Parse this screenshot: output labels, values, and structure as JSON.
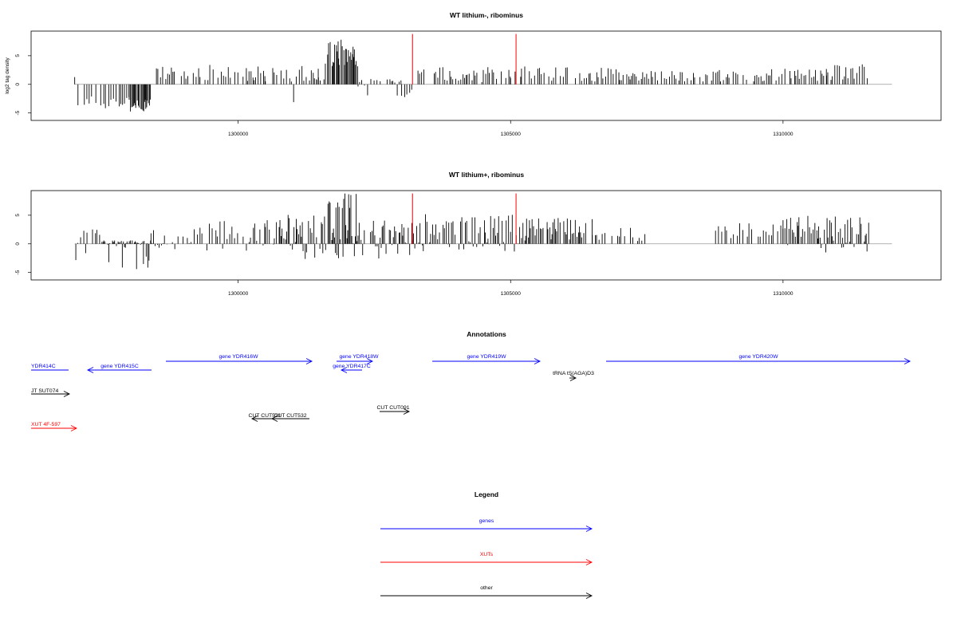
{
  "colors": {
    "genes": "#0000ff",
    "xuts": "#ff0000",
    "other": "#000000",
    "baseline": "#999999",
    "marker": "#ff0000"
  },
  "chart_data": [
    {
      "type": "bar",
      "title": "WT lithium-, ribominus",
      "ylabel": "log2 tag density",
      "xlim": [
        1296200,
        1312900
      ],
      "ylim": [
        -6.3,
        9.3
      ],
      "xticks": [
        1300000,
        1305000,
        1310000
      ],
      "xtick_labels": [
        "1300000",
        "1305000",
        "1310000"
      ],
      "yticks": [
        -5,
        0,
        5
      ],
      "ytick_labels": [
        "-5",
        "0",
        "5"
      ],
      "markers": [
        1303200,
        1305100
      ],
      "marker_height": 8.8,
      "baseline": [
        1297000,
        1312000
      ],
      "profile": [
        [
          1297000,
          1297050,
          -2.8,
          3.0
        ],
        [
          1297060,
          1298000,
          -4.2,
          -2.0
        ],
        [
          1298000,
          1298400,
          -4.8,
          -2.4
        ],
        [
          1298500,
          1299300,
          0.4,
          3.2
        ],
        [
          1299300,
          1300500,
          0.6,
          3.4
        ],
        [
          1300500,
          1301500,
          -3.5,
          3.2
        ],
        [
          1301400,
          1301600,
          0.5,
          2.2
        ],
        [
          1301600,
          1302200,
          3.0,
          8.0
        ],
        [
          1302200,
          1303000,
          -2.2,
          1.2
        ],
        [
          1303000,
          1303200,
          -2.5,
          0
        ],
        [
          1303300,
          1305000,
          0.3,
          3.0
        ],
        [
          1305000,
          1305200,
          0.5,
          2.5
        ],
        [
          1305200,
          1307000,
          0.4,
          3.2
        ],
        [
          1307000,
          1308800,
          0.5,
          2.4
        ],
        [
          1308800,
          1310800,
          0.5,
          2.8
        ],
        [
          1310800,
          1311600,
          0.6,
          3.6
        ]
      ]
    },
    {
      "type": "bar",
      "title": "WT lithium+, ribominus",
      "ylabel": "",
      "xlim": [
        1296200,
        1312900
      ],
      "ylim": [
        -6.3,
        9.3
      ],
      "xticks": [
        1300000,
        1305000,
        1310000
      ],
      "xtick_labels": [
        "1300000",
        "1305000",
        "1310000"
      ],
      "yticks": [
        -5,
        0,
        5
      ],
      "ytick_labels": [
        "-5",
        "0",
        "5"
      ],
      "markers": [
        1303200,
        1305100
      ],
      "marker_height": 8.8,
      "baseline": [
        1297000,
        1312000
      ],
      "profile": [
        [
          1297000,
          1297500,
          -4.0,
          2.6
        ],
        [
          1297500,
          1298400,
          -5.8,
          0.6
        ],
        [
          1298400,
          1299300,
          -1.5,
          2.8
        ],
        [
          1299300,
          1300500,
          -1.5,
          4.0
        ],
        [
          1300500,
          1301500,
          -3.5,
          5.2
        ],
        [
          1301500,
          1302200,
          -2.5,
          8.8
        ],
        [
          1302200,
          1303200,
          -2.6,
          4.2
        ],
        [
          1303200,
          1305200,
          -1.6,
          5.2
        ],
        [
          1305200,
          1306500,
          0.5,
          4.6
        ],
        [
          1306500,
          1307500,
          0.5,
          2.8
        ],
        [
          1308700,
          1310000,
          0.5,
          3.6
        ],
        [
          1310000,
          1311600,
          -1.8,
          5.0
        ]
      ]
    }
  ],
  "annotations": {
    "title": "Annotations",
    "items": [
      {
        "label": "YDR414C",
        "kind": "genes",
        "dir": "none",
        "label_side": "above"
      },
      {
        "label": "gene YDR415C",
        "kind": "genes",
        "dir": "left",
        "label_side": "above"
      },
      {
        "label": "gene YDR416W",
        "kind": "genes",
        "dir": "right",
        "label_side": "above"
      },
      {
        "label": "gene YDR418W",
        "kind": "genes",
        "dir": "right",
        "label_side": "above"
      },
      {
        "label": "gene YDR417C",
        "kind": "genes",
        "dir": "left",
        "label_side": "above"
      },
      {
        "label": "gene YDR419W",
        "kind": "genes",
        "dir": "right",
        "label_side": "above"
      },
      {
        "label": "gene YDR420W",
        "kind": "genes",
        "dir": "right",
        "label_side": "above"
      },
      {
        "label": "tRNA tS(AGA)D3",
        "kind": "other",
        "dir": "right",
        "label_side": "above"
      },
      {
        "label": "JT SUT074",
        "kind": "other",
        "dir": "right",
        "label_side": "left"
      },
      {
        "label": "CUT CUT531",
        "kind": "other",
        "dir": "left",
        "label_side": "above"
      },
      {
        "label": "CUT CUT532",
        "kind": "other",
        "dir": "left",
        "label_side": "above"
      },
      {
        "label": "CUT CUT091",
        "kind": "other",
        "dir": "right",
        "label_side": "above"
      },
      {
        "label": "XUT 4F-597",
        "kind": "xuts",
        "dir": "right",
        "label_side": "left"
      }
    ]
  },
  "legend": {
    "title": "Legend",
    "items": [
      {
        "label": "genes",
        "kind": "genes"
      },
      {
        "label": "XUTs",
        "kind": "xuts"
      },
      {
        "label": "other",
        "kind": "other"
      }
    ]
  }
}
